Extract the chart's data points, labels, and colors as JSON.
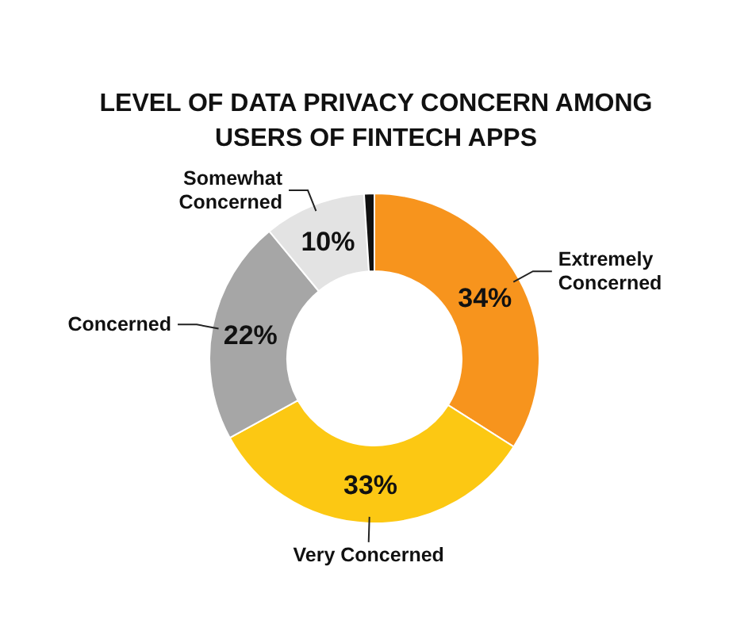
{
  "chart_data": {
    "type": "donut",
    "title": "LEVEL OF DATA PRIVACY CONCERN AMONG USERS OF FINTECH APPS",
    "categories": [
      "Extremely Concerned",
      "Very Concerned",
      "Concerned",
      "Somewhat Concerned",
      null
    ],
    "values": [
      34,
      33,
      22,
      10,
      1
    ],
    "value_labels": [
      "34%",
      "33%",
      "22%",
      "10%",
      null
    ],
    "colors": [
      "#f7941d",
      "#fcc813",
      "#a6a6a6",
      "#e3e3e3",
      "#111111"
    ]
  }
}
